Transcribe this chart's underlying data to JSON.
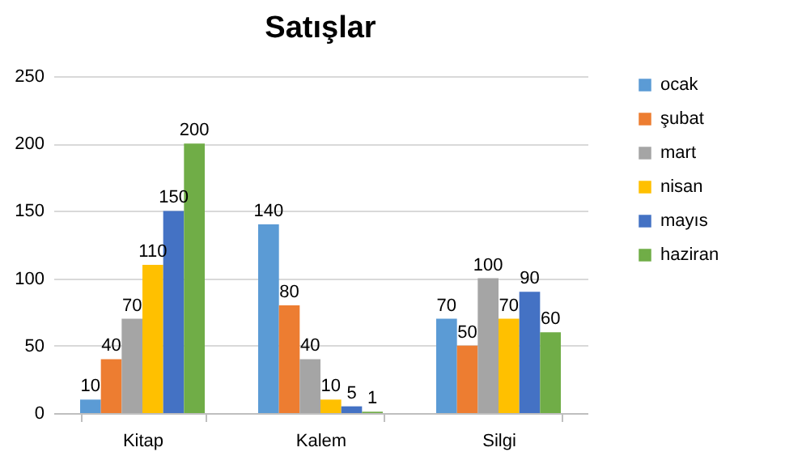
{
  "chart_data": {
    "type": "bar",
    "title": "Satışlar",
    "categories": [
      "Kitap",
      "Kalem",
      "Silgi"
    ],
    "series": [
      {
        "name": "ocak",
        "color": "#5b9bd5",
        "values": [
          10,
          140,
          70
        ]
      },
      {
        "name": "şubat",
        "color": "#ed7d31",
        "values": [
          40,
          80,
          50
        ]
      },
      {
        "name": "mart",
        "color": "#a5a5a5",
        "values": [
          70,
          40,
          100
        ]
      },
      {
        "name": "nisan",
        "color": "#ffc000",
        "values": [
          110,
          10,
          70
        ]
      },
      {
        "name": "mayıs",
        "color": "#4472c4",
        "values": [
          150,
          5,
          90
        ]
      },
      {
        "name": "haziran",
        "color": "#70ad47",
        "values": [
          200,
          1,
          60
        ]
      }
    ],
    "ylim": [
      0,
      250
    ],
    "yticks": [
      0,
      50,
      100,
      150,
      200,
      250
    ],
    "grid": "y",
    "legend": "right",
    "data_labels": true
  }
}
